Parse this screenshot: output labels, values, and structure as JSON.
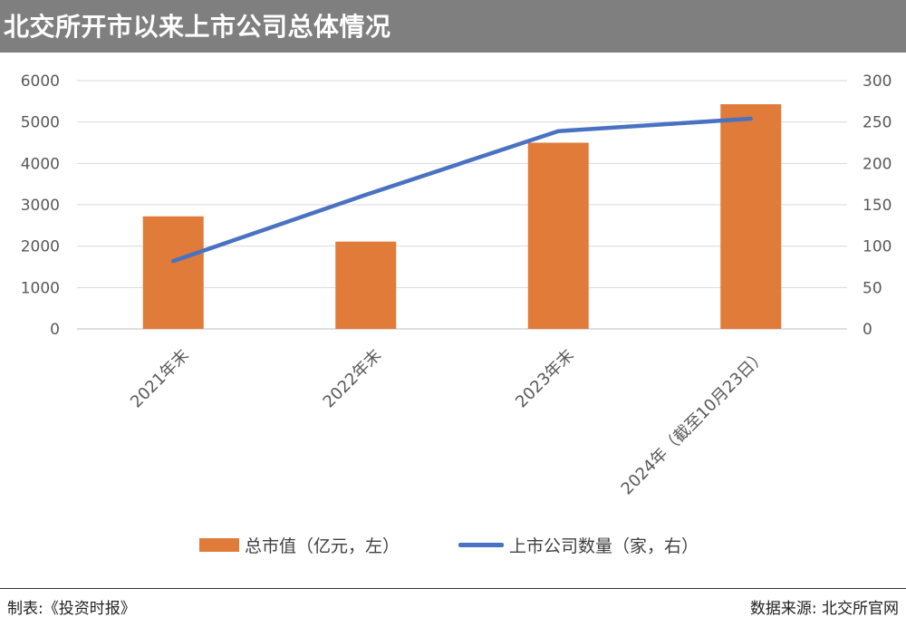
{
  "header": {
    "title": "北交所开市以来上市公司总体情况"
  },
  "footer": {
    "left": "制表:《投资时报》",
    "right": "数据来源: 北交所官网"
  },
  "chart_data": {
    "type": "bar+line",
    "categories": [
      "2021年末",
      "2022年末",
      "2023年末",
      "2024年（截至10月23日）"
    ],
    "series": [
      {
        "name": "总市值（亿元，左）",
        "type": "bar",
        "axis": "left",
        "color": "#e07b39",
        "values": [
          2720,
          2110,
          4500,
          5430
        ]
      },
      {
        "name": "上市公司数量（家，右）",
        "type": "line",
        "axis": "right",
        "color": "#4a72c2",
        "values": [
          82,
          162,
          239,
          254
        ]
      }
    ],
    "y_left": {
      "min": 0,
      "max": 6000,
      "ticks": [
        0,
        1000,
        2000,
        3000,
        4000,
        5000,
        6000
      ]
    },
    "y_right": {
      "min": 0,
      "max": 300,
      "ticks": [
        0,
        50,
        100,
        150,
        200,
        250,
        300
      ]
    },
    "grid": true,
    "legend_position": "bottom"
  }
}
